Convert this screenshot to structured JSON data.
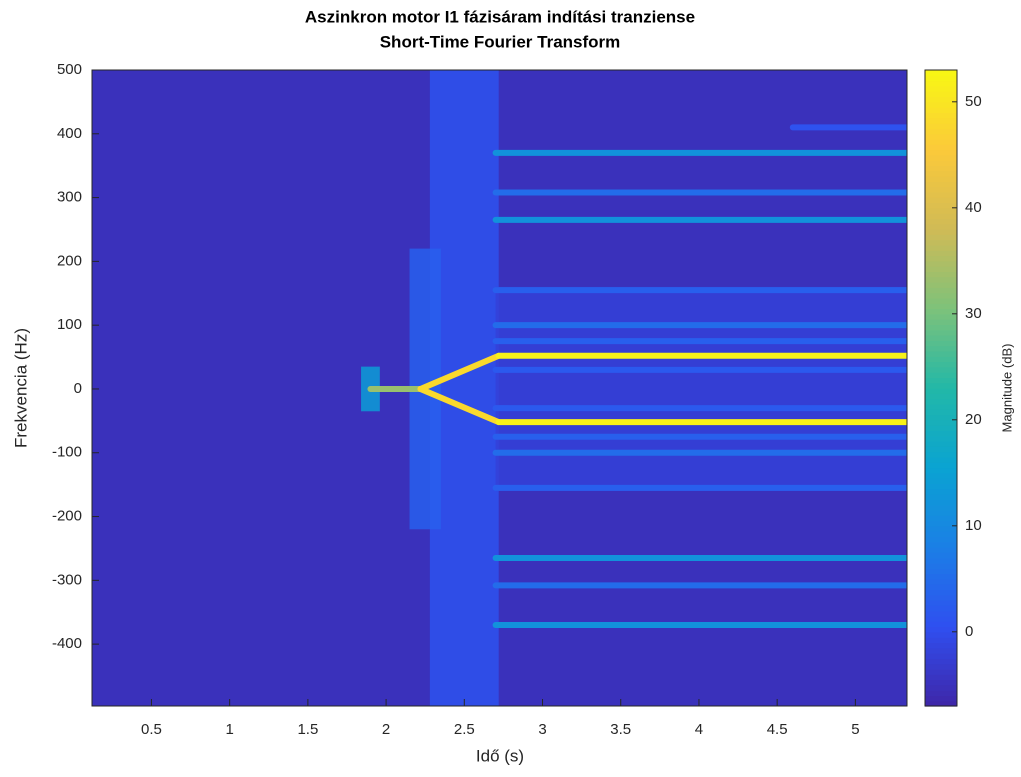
{
  "chart_data": {
    "type": "spectrogram",
    "title": "Aszinkron motor I1 fázisáram indítási tranziense",
    "subtitle": "Short-Time Fourier Transform",
    "xlabel": "Idő (s)",
    "ylabel": "Frekvencia (Hz)",
    "colorbar_label": "Magnitude (dB)",
    "xlim": [
      0.12,
      5.33
    ],
    "ylim": [
      -497,
      500
    ],
    "clim": [
      -7,
      53
    ],
    "xticks": [
      0.5,
      1,
      1.5,
      2,
      2.5,
      3,
      3.5,
      4,
      4.5,
      5
    ],
    "yticks": [
      -400,
      -300,
      -200,
      -100,
      0,
      100,
      200,
      300,
      400,
      500
    ],
    "cticks": [
      0,
      10,
      20,
      30,
      40,
      50
    ],
    "colormap": [
      "#3e26a8",
      "#2f4ff0",
      "#1b7fe6",
      "#0aa3d2",
      "#22b8a8",
      "#7dc27a",
      "#d0bb56",
      "#fbc93a",
      "#f8f814"
    ],
    "background": -5,
    "patches": [
      {
        "t": [
          2.28,
          2.72
        ],
        "f": [
          -497,
          500
        ],
        "z": 1
      },
      {
        "t": [
          2.15,
          2.35
        ],
        "f": [
          -220,
          220
        ],
        "z": 3
      },
      {
        "t": [
          2.7,
          5.33
        ],
        "f": [
          -160,
          160
        ],
        "z": -2
      },
      {
        "t": [
          1.84,
          1.96
        ],
        "f": [
          -35,
          35
        ],
        "z": 14
      }
    ],
    "lines": [
      {
        "t": [
          2.7,
          5.33
        ],
        "f": [
          155,
          155
        ],
        "z": 3
      },
      {
        "t": [
          2.7,
          5.33
        ],
        "f": [
          -155,
          -155
        ],
        "z": 3
      },
      {
        "t": [
          2.7,
          5.33
        ],
        "f": [
          100,
          100
        ],
        "z": 5
      },
      {
        "t": [
          2.7,
          5.33
        ],
        "f": [
          -100,
          -100
        ],
        "z": 5
      },
      {
        "t": [
          2.7,
          5.33
        ],
        "f": [
          75,
          75
        ],
        "z": 3
      },
      {
        "t": [
          2.7,
          5.33
        ],
        "f": [
          -75,
          -75
        ],
        "z": 3
      },
      {
        "t": [
          2.7,
          5.33
        ],
        "f": [
          30,
          30
        ],
        "z": 2
      },
      {
        "t": [
          2.7,
          5.33
        ],
        "f": [
          -30,
          -30
        ],
        "z": 2
      },
      {
        "t": [
          4.6,
          5.33
        ],
        "f": [
          410,
          410
        ],
        "z": 1
      },
      {
        "t": [
          2.7,
          5.33
        ],
        "f": [
          308,
          308
        ],
        "z": 5
      },
      {
        "t": [
          2.7,
          5.33
        ],
        "f": [
          -308,
          -308
        ],
        "z": 5
      },
      {
        "t": [
          2.7,
          5.33
        ],
        "f": [
          370,
          370
        ],
        "z": 12
      },
      {
        "t": [
          2.7,
          5.33
        ],
        "f": [
          265,
          265
        ],
        "z": 12
      },
      {
        "t": [
          2.7,
          5.33
        ],
        "f": [
          -265,
          -265
        ],
        "z": 12
      },
      {
        "t": [
          2.7,
          5.33
        ],
        "f": [
          -370,
          -370
        ],
        "z": 12
      },
      {
        "t": [
          1.9,
          2.22
        ],
        "f": [
          0,
          0
        ],
        "z": 33
      },
      {
        "t": [
          2.22,
          2.72
        ],
        "f": [
          0,
          52
        ],
        "z": 48
      },
      {
        "t": [
          2.22,
          2.72
        ],
        "f": [
          0,
          -52
        ],
        "z": 48
      },
      {
        "t": [
          2.72,
          5.33
        ],
        "f": [
          52,
          52
        ],
        "z": 52
      },
      {
        "t": [
          2.72,
          5.33
        ],
        "f": [
          -52,
          -52
        ],
        "z": 52
      }
    ]
  }
}
